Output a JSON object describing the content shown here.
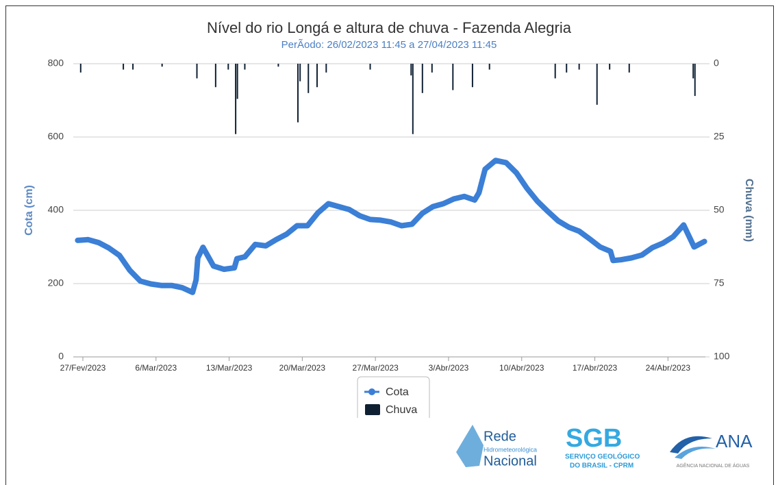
{
  "chart_data": {
    "type": "line",
    "title": "Nível do rio Longá e altura de chuva - Fazenda Alegria",
    "subtitle": "PerÃodo: 26/02/2023 11:45 a 27/04/2023 11:45",
    "ylabel": "Cota (cm)",
    "y2label": "Chuva (mm)",
    "xlim": [
      "2023-02-26 02:00",
      "2023-04-27 14:00"
    ],
    "xticks": [
      {
        "value": "2023-02-27 00:00",
        "label": "27/Fev/2023"
      },
      {
        "value": "2023-03-06 00:00",
        "label": "6/Mar/2023"
      },
      {
        "value": "2023-03-13 00:00",
        "label": "13/Mar/2023"
      },
      {
        "value": "2023-03-20 00:00",
        "label": "20/Mar/2023"
      },
      {
        "value": "2023-03-27 00:00",
        "label": "27/Mar/2023"
      },
      {
        "value": "2023-04-03 00:00",
        "label": "3/Abr/2023"
      },
      {
        "value": "2023-04-10 00:00",
        "label": "10/Abr/2023"
      },
      {
        "value": "2023-04-17 00:00",
        "label": "17/Abr/2023"
      },
      {
        "value": "2023-04-24 00:00",
        "label": "24/Abr/2023"
      }
    ],
    "ylim": [
      0,
      800
    ],
    "yticks": [
      0,
      200,
      400,
      600,
      800
    ],
    "y2lim": [
      100,
      0
    ],
    "y2ticks": [
      0,
      25,
      50,
      75,
      100
    ],
    "grid": true,
    "legend": "bottom",
    "series": [
      {
        "name": "Cota",
        "type": "line",
        "color": "#3b7fd6",
        "x": [
          "2023-02-26 12:00",
          "2023-02-27 12:00",
          "2023-02-28 12:00",
          "2023-03-01 12:00",
          "2023-03-02 12:00",
          "2023-03-03 12:00",
          "2023-03-04 12:00",
          "2023-03-05 12:00",
          "2023-03-06 12:00",
          "2023-03-07 12:00",
          "2023-03-08 12:00",
          "2023-03-09 12:00",
          "2023-03-09 20:00",
          "2023-03-10 00:00",
          "2023-03-10 12:00",
          "2023-03-11 12:00",
          "2023-03-12 12:00",
          "2023-03-13 12:00",
          "2023-03-13 18:00",
          "2023-03-14 12:00",
          "2023-03-15 12:00",
          "2023-03-16 12:00",
          "2023-03-17 12:00",
          "2023-03-18 12:00",
          "2023-03-19 12:00",
          "2023-03-20 12:00",
          "2023-03-21 12:00",
          "2023-03-22 12:00",
          "2023-03-23 12:00",
          "2023-03-24 12:00",
          "2023-03-25 12:00",
          "2023-03-26 12:00",
          "2023-03-27 12:00",
          "2023-03-28 12:00",
          "2023-03-29 12:00",
          "2023-03-30 12:00",
          "2023-03-31 12:00",
          "2023-04-01 12:00",
          "2023-04-02 12:00",
          "2023-04-03 12:00",
          "2023-04-04 12:00",
          "2023-04-05 12:00",
          "2023-04-05 22:00",
          "2023-04-06 12:00",
          "2023-04-07 12:00",
          "2023-04-08 12:00",
          "2023-04-09 12:00",
          "2023-04-10 12:00",
          "2023-04-11 12:00",
          "2023-04-12 12:00",
          "2023-04-13 12:00",
          "2023-04-14 12:00",
          "2023-04-15 12:00",
          "2023-04-16 12:00",
          "2023-04-17 12:00",
          "2023-04-18 12:00",
          "2023-04-18 18:00",
          "2023-04-19 12:00",
          "2023-04-20 12:00",
          "2023-04-21 12:00",
          "2023-04-22 12:00",
          "2023-04-23 12:00",
          "2023-04-24 12:00",
          "2023-04-25 12:00",
          "2023-04-26 12:00",
          "2023-04-27 11:45"
        ],
        "values": [
          318,
          320,
          312,
          297,
          277,
          236,
          207,
          199,
          195,
          195,
          189,
          176,
          210,
          270,
          299,
          248,
          239,
          243,
          268,
          273,
          307,
          303,
          320,
          335,
          358,
          358,
          393,
          418,
          410,
          402,
          385,
          375,
          373,
          368,
          358,
          362,
          392,
          410,
          418,
          431,
          438,
          428,
          448,
          512,
          536,
          530,
          502,
          460,
          425,
          397,
          371,
          354,
          343,
          322,
          300,
          288,
          263,
          265,
          270,
          278,
          298,
          310,
          328,
          360,
          300,
          315
        ]
      },
      {
        "name": "Chuva",
        "type": "bar",
        "axis": "y2",
        "color": "#0f2033",
        "x": [
          "2023-02-26 19:00",
          "2023-03-02 21:00",
          "2023-03-03 19:00",
          "2023-03-06 14:00",
          "2023-03-09 22:00",
          "2023-03-11 17:00",
          "2023-03-12 22:00",
          "2023-03-13 15:00",
          "2023-03-13 19:00",
          "2023-03-14 12:00",
          "2023-03-17 17:00",
          "2023-03-19 14:00",
          "2023-03-19 19:00",
          "2023-03-20 14:00",
          "2023-03-21 10:00",
          "2023-03-22 07:00",
          "2023-03-26 12:00",
          "2023-03-30 10:00",
          "2023-03-30 14:00",
          "2023-03-31 12:00",
          "2023-04-01 10:00",
          "2023-04-03 10:00",
          "2023-04-05 07:00",
          "2023-04-06 22:00",
          "2023-04-13 05:00",
          "2023-04-14 07:00",
          "2023-04-15 12:00",
          "2023-04-17 05:00",
          "2023-04-18 10:00",
          "2023-04-20 07:00",
          "2023-04-26 10:00",
          "2023-04-26 14:00"
        ],
        "values": [
          3,
          2,
          2,
          1,
          5,
          8,
          2,
          24,
          12,
          2,
          1,
          20,
          6,
          10,
          8,
          3,
          2,
          4,
          24,
          10,
          3,
          9,
          8,
          2,
          5,
          3,
          2,
          14,
          2,
          3,
          5,
          11
        ]
      }
    ]
  },
  "logos": {
    "rede": [
      "Rede",
      "Hidrometeorológica",
      "Nacional"
    ],
    "sgb": [
      "SGB",
      "SERVIÇO GEOLÓGICO",
      "DO BRASIL - CPRM"
    ],
    "ana": [
      "ANA",
      "AGÊNCIA NACIONAL DE ÁGUAS"
    ]
  }
}
